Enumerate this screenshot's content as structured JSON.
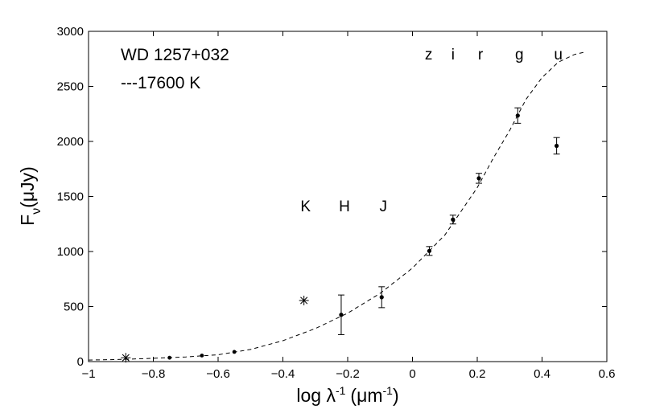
{
  "chart_data": {
    "type": "scatter",
    "annotations": [
      "WD 1257+032",
      "---17600  K"
    ],
    "xlabel": {
      "base": "log λ",
      "base_sup": "-1",
      "unit": "(μm",
      "unit_sup": "-1",
      "close": ")"
    },
    "ylabel": {
      "main": "F",
      "sub": "ν",
      "rest": "(μJy)"
    },
    "xlim": [
      -1,
      0.6
    ],
    "ylim": [
      0,
      3000
    ],
    "xticks": [
      -1,
      -0.8,
      -0.6,
      -0.4,
      -0.2,
      0,
      0.2,
      0.4,
      0.6
    ],
    "xtick_labels": [
      "−1",
      "−0.8",
      "−0.6",
      "−0.4",
      "−0.2",
      "0",
      "0.2",
      "0.4",
      "0.6"
    ],
    "yticks": [
      0,
      500,
      1000,
      1500,
      2000,
      2500,
      3000
    ],
    "ytick_labels": [
      "0",
      "500",
      "1000",
      "1500",
      "2000",
      "2500",
      "3000"
    ],
    "grid": false,
    "band_labels_top": [
      {
        "label": "z",
        "x": 0.05
      },
      {
        "label": "i",
        "x": 0.125
      },
      {
        "label": "r",
        "x": 0.21
      },
      {
        "label": "g",
        "x": 0.33
      },
      {
        "label": "u",
        "x": 0.45
      }
    ],
    "band_labels_mid": [
      {
        "label": "K",
        "x": -0.33
      },
      {
        "label": "H",
        "x": -0.21
      },
      {
        "label": "J",
        "x": -0.09
      }
    ],
    "series": [
      {
        "marker": "dot-errorbar",
        "points": [
          {
            "x": -0.22,
            "y": 425,
            "err": 180
          },
          {
            "x": -0.095,
            "y": 585,
            "err": 95
          },
          {
            "x": 0.052,
            "y": 1005,
            "err": 40
          },
          {
            "x": 0.125,
            "y": 1290,
            "err": 40
          },
          {
            "x": 0.205,
            "y": 1665,
            "err": 45
          },
          {
            "x": 0.325,
            "y": 2235,
            "err": 70
          },
          {
            "x": 0.445,
            "y": 1960,
            "err": 75
          }
        ]
      },
      {
        "marker": "dot",
        "points": [
          {
            "x": -0.75,
            "y": 35
          },
          {
            "x": -0.65,
            "y": 55
          },
          {
            "x": -0.55,
            "y": 88
          }
        ]
      },
      {
        "marker": "asterisk",
        "points": [
          {
            "x": -0.885,
            "y": 35
          },
          {
            "x": -0.335,
            "y": 555
          }
        ]
      },
      {
        "style": "dashed-line",
        "points": [
          {
            "x": -1.0,
            "y": 14
          },
          {
            "x": -0.9,
            "y": 20
          },
          {
            "x": -0.8,
            "y": 30
          },
          {
            "x": -0.7,
            "y": 42
          },
          {
            "x": -0.6,
            "y": 62
          },
          {
            "x": -0.5,
            "y": 110
          },
          {
            "x": -0.4,
            "y": 190
          },
          {
            "x": -0.3,
            "y": 300
          },
          {
            "x": -0.2,
            "y": 440
          },
          {
            "x": -0.1,
            "y": 620
          },
          {
            "x": 0.0,
            "y": 850
          },
          {
            "x": 0.1,
            "y": 1150
          },
          {
            "x": 0.2,
            "y": 1580
          },
          {
            "x": 0.25,
            "y": 1850
          },
          {
            "x": 0.3,
            "y": 2100
          },
          {
            "x": 0.35,
            "y": 2380
          },
          {
            "x": 0.4,
            "y": 2580
          },
          {
            "x": 0.45,
            "y": 2720
          },
          {
            "x": 0.5,
            "y": 2790
          },
          {
            "x": 0.53,
            "y": 2810
          }
        ]
      }
    ]
  }
}
